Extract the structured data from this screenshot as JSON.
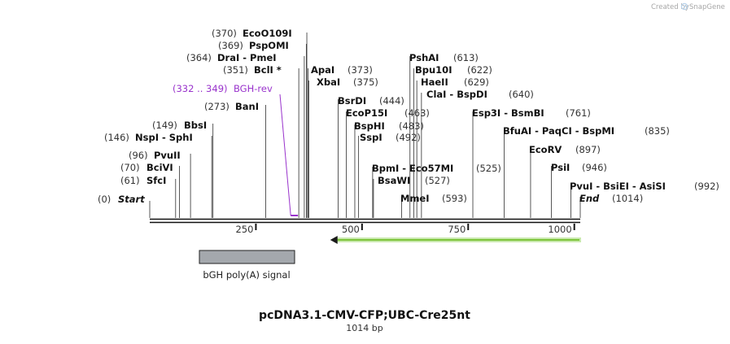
{
  "watermark": "Created by",
  "brand": "SnapGene",
  "map": {
    "title": "pcDNA3.1-CMV-CFP;UBC-Cre25nt",
    "length": "1014 bp",
    "total_bp": 1014,
    "ticks": [
      "250",
      "500",
      "750",
      "1000"
    ]
  },
  "primer": {
    "range": "(332 .. 349)",
    "name": "BGH-rev",
    "start_bp": 332,
    "end_bp": 349,
    "color": "#9933cc"
  },
  "features": [
    {
      "name": "bGH poly(A) signal",
      "color": "#a4a8ad",
      "start_bp": 120,
      "end_bp": 345
    }
  ],
  "arrow_feature": {
    "color": "#7cc43a",
    "direction": "left",
    "start_bp": 425,
    "end_bp": 1014
  },
  "sites": [
    {
      "pos": "(0)",
      "name": "Start",
      "italic": true,
      "bp": 0
    },
    {
      "pos": "(61)",
      "name": "SfcI",
      "bp": 61
    },
    {
      "pos": "(70)",
      "name": "BciVI",
      "bp": 70
    },
    {
      "pos": "(96)",
      "name": "PvuII",
      "bp": 96
    },
    {
      "pos": "(146)",
      "name": "NspI - SphI",
      "bp": 146
    },
    {
      "pos": "(149)",
      "name": "BbsI",
      "bp": 149
    },
    {
      "pos": "(273)",
      "name": "BanI",
      "bp": 273
    },
    {
      "pos": "(351)",
      "name": "BclI *",
      "bp": 351
    },
    {
      "pos": "(364)",
      "name": "DraI - PmeI",
      "bp": 364
    },
    {
      "pos": "(369)",
      "name": "PspOMI",
      "bp": 369
    },
    {
      "pos": "(370)",
      "name": "EcoO109I",
      "bp": 370
    },
    {
      "pos": "(373)",
      "name": "ApaI",
      "bp": 373
    },
    {
      "pos": "(375)",
      "name": "XbaI",
      "bp": 375
    },
    {
      "pos": "(444)",
      "name": "BsrDI",
      "bp": 444
    },
    {
      "pos": "(463)",
      "name": "EcoP15I",
      "bp": 463
    },
    {
      "pos": "(483)",
      "name": "BspHI",
      "bp": 483
    },
    {
      "pos": "(492)",
      "name": "SspI",
      "bp": 492
    },
    {
      "pos": "(525)",
      "name": "BpmI - Eco57MI",
      "bp": 525
    },
    {
      "pos": "(527)",
      "name": "BsaWI",
      "bp": 527
    },
    {
      "pos": "(593)",
      "name": "MmeI",
      "bp": 593
    },
    {
      "pos": "(613)",
      "name": "PshAI",
      "bp": 613
    },
    {
      "pos": "(622)",
      "name": "Bpu10I",
      "bp": 622
    },
    {
      "pos": "(629)",
      "name": "HaeII",
      "bp": 629
    },
    {
      "pos": "(640)",
      "name": "ClaI - BspDI",
      "bp": 640
    },
    {
      "pos": "(761)",
      "name": "Esp3I - BsmBI",
      "bp": 761
    },
    {
      "pos": "(835)",
      "name": "BfuAI - PaqCI - BspMI",
      "bp": 835
    },
    {
      "pos": "(897)",
      "name": "EcoRV",
      "bp": 897
    },
    {
      "pos": "(946)",
      "name": "PsiI",
      "bp": 946
    },
    {
      "pos": "(992)",
      "name": "PvuI - BsiEI - AsiSI",
      "bp": 992
    },
    {
      "pos": "(1014)",
      "name": "End",
      "italic": true,
      "bp": 1014
    }
  ]
}
